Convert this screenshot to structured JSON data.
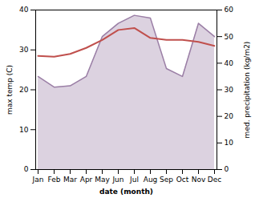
{
  "chart_data": {
    "type": "line",
    "xlabel": "date (month)",
    "ylabel": "max temp (C)",
    "y2label": "med. precipitation (kg/m2)",
    "categories": [
      "Jan",
      "Feb",
      "Mar",
      "Apr",
      "May",
      "Jun",
      "Jul",
      "Aug",
      "Sep",
      "Oct",
      "Nov",
      "Dec"
    ],
    "series": [
      {
        "type": "area",
        "axis": "y2",
        "color": "#9b7fa6",
        "values": [
          35.0,
          31.0,
          31.5,
          35.0,
          50.0,
          55.0,
          58.0,
          57.0,
          38.0,
          35.0,
          55.0,
          50.0
        ]
      },
      {
        "type": "line",
        "color": "#c0504d",
        "values": [
          28.5,
          28.3,
          29.0,
          30.5,
          32.5,
          35.0,
          35.5,
          33.0,
          32.5,
          32.5,
          32.0,
          31.0
        ]
      }
    ],
    "ylim": [
      0,
      40
    ],
    "yticks": [
      0,
      10,
      20,
      30,
      40
    ],
    "y2lim": [
      0,
      60
    ],
    "y2ticks": [
      0,
      10,
      20,
      30,
      40,
      50,
      60
    ],
    "grid": false
  }
}
